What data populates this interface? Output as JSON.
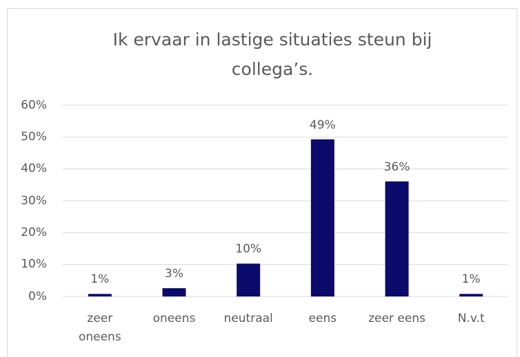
{
  "chart_data": {
    "type": "bar",
    "title": "Ik ervaar in lastige situaties steun bij collega’s.",
    "categories": [
      "zeer oneens",
      "oneens",
      "neutraal",
      "eens",
      "zeer eens",
      "N.v.t"
    ],
    "values": [
      0.8,
      2.6,
      10.3,
      49.3,
      36.1,
      0.8
    ],
    "value_labels": [
      "1%",
      "3%",
      "10%",
      "49%",
      "36%",
      "1%"
    ],
    "color": "#0b0b6b",
    "ylim": [
      0,
      60
    ],
    "yticks": [
      {
        "value": 0,
        "label": "0%"
      },
      {
        "value": 10,
        "label": "10%"
      },
      {
        "value": 20,
        "label": "20%"
      },
      {
        "value": 30,
        "label": "30%"
      },
      {
        "value": 40,
        "label": "40%"
      },
      {
        "value": 50,
        "label": "50%"
      },
      {
        "value": 60,
        "label": "60%"
      }
    ],
    "grid": true
  }
}
